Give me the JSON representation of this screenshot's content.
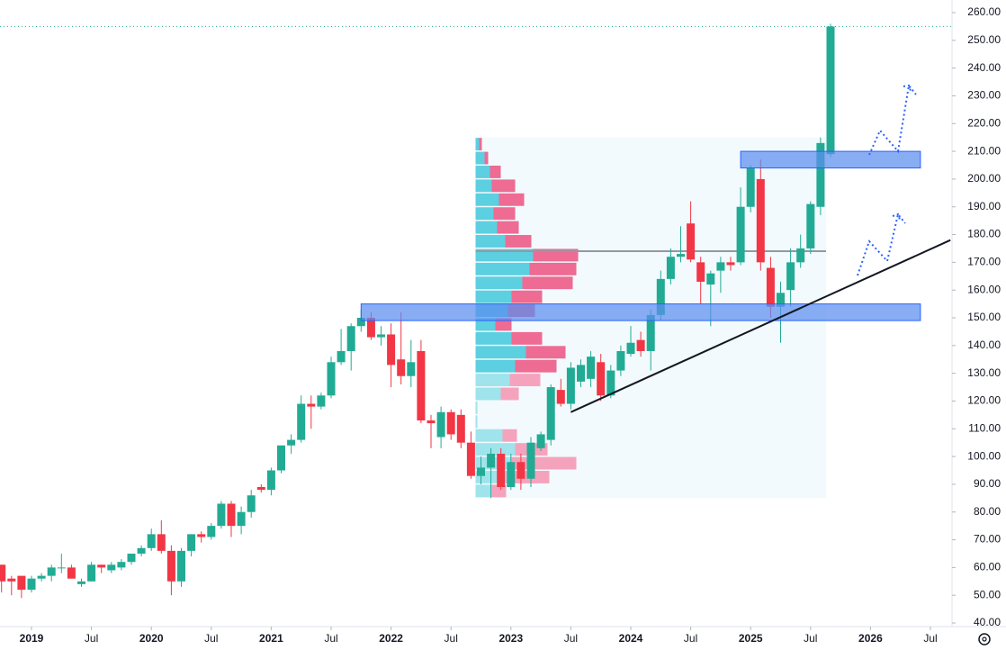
{
  "chart_data": {
    "type": "candlestick",
    "x": [
      "2018-10",
      "2018-11",
      "2018-12",
      "2019-01",
      "2019-02",
      "2019-03",
      "2019-04",
      "2019-05",
      "2019-06",
      "2019-07",
      "2019-08",
      "2019-09",
      "2019-10",
      "2019-11",
      "2019-12",
      "2020-01",
      "2020-02",
      "2020-03",
      "2020-04",
      "2020-05",
      "2020-06",
      "2020-07",
      "2020-08",
      "2020-09",
      "2020-10",
      "2020-11",
      "2020-12",
      "2021-01",
      "2021-02",
      "2021-03",
      "2021-04",
      "2021-05",
      "2021-06",
      "2021-07",
      "2021-08",
      "2021-09",
      "2021-10",
      "2021-11",
      "2021-12",
      "2022-01",
      "2022-02",
      "2022-03",
      "2022-04",
      "2022-05",
      "2022-06",
      "2022-07",
      "2022-08",
      "2022-09",
      "2022-10",
      "2022-11",
      "2022-12",
      "2023-01",
      "2023-02",
      "2023-03",
      "2023-04",
      "2023-05",
      "2023-06",
      "2023-07",
      "2023-08",
      "2023-09",
      "2023-10",
      "2023-11",
      "2023-12",
      "2024-01",
      "2024-02",
      "2024-03",
      "2024-04",
      "2024-05",
      "2024-06",
      "2024-07",
      "2024-08",
      "2024-09",
      "2024-10",
      "2024-11",
      "2024-12",
      "2025-01",
      "2025-02",
      "2025-03",
      "2025-04",
      "2025-05",
      "2025-06",
      "2025-07",
      "2025-08",
      "2025-09"
    ],
    "open": [
      61,
      56,
      57,
      52,
      56,
      57,
      60,
      60,
      54,
      55,
      61,
      59,
      60,
      62,
      65,
      67,
      72,
      66,
      55,
      66,
      72,
      71,
      75,
      83,
      75,
      80,
      89,
      88,
      95,
      104,
      106,
      119,
      118,
      122,
      134,
      138,
      147,
      150,
      143,
      144,
      135,
      129,
      138,
      113,
      107,
      116,
      115,
      105,
      93,
      96,
      101,
      89,
      98,
      92,
      103,
      106,
      124,
      119,
      127,
      128,
      134,
      122,
      131,
      137,
      142,
      138,
      151,
      164,
      172,
      184,
      170,
      162,
      167,
      170,
      170,
      190,
      200,
      168,
      154,
      160,
      170,
      175,
      190,
      209
    ],
    "high": [
      61,
      57,
      57,
      57,
      58,
      61,
      65,
      61,
      56,
      62,
      61,
      62,
      63,
      65,
      68,
      74,
      77,
      68,
      67,
      72,
      73,
      76,
      84,
      84,
      82,
      88,
      90,
      96,
      104,
      108,
      122,
      122,
      123,
      136,
      146,
      148,
      153,
      152,
      147,
      148,
      152,
      142,
      142,
      115,
      118,
      117,
      117,
      109,
      100,
      103,
      103,
      101,
      101,
      107,
      109,
      126,
      128,
      134,
      135,
      138,
      137,
      133,
      140,
      147,
      145,
      153,
      167,
      175,
      183,
      192,
      172,
      167,
      172,
      172,
      197,
      205,
      207,
      172,
      163,
      175,
      180,
      192,
      215,
      256
    ],
    "low": [
      51,
      50,
      49,
      51,
      55,
      55,
      58,
      56,
      53,
      55,
      58,
      58,
      59,
      61,
      64,
      66,
      65,
      50,
      53,
      64,
      69,
      70,
      74,
      71,
      72,
      78,
      87,
      86,
      94,
      101,
      105,
      110,
      117,
      121,
      133,
      131,
      145,
      142,
      140,
      125,
      126,
      125,
      112,
      103,
      103,
      106,
      103,
      92,
      90,
      85,
      88,
      88,
      88,
      89,
      102,
      104,
      118,
      117,
      125,
      125,
      120,
      121,
      129,
      136,
      136,
      131,
      149,
      162,
      170,
      170,
      155,
      147,
      159,
      167,
      169,
      188,
      167,
      150,
      141,
      154,
      168,
      173,
      187,
      208
    ],
    "close": [
      55,
      55,
      52,
      56,
      57,
      60,
      60,
      56,
      55,
      61,
      60,
      61,
      62,
      65,
      67,
      72,
      66,
      55,
      66,
      72,
      71,
      75,
      83,
      75,
      80,
      86,
      88,
      95,
      104,
      106,
      119,
      118,
      122,
      134,
      138,
      147,
      150,
      143,
      144,
      133,
      129,
      134,
      113,
      112,
      116,
      108,
      105,
      93,
      96,
      101,
      89,
      98,
      92,
      105,
      108,
      125,
      119,
      132,
      133,
      136,
      122,
      131,
      138,
      141,
      138,
      151,
      164,
      172,
      173,
      171,
      163,
      166,
      170,
      169,
      190,
      204,
      170,
      154,
      159,
      170,
      175,
      191,
      213,
      255
    ],
    "up_color": "#22ab94",
    "down_color": "#f23645",
    "ylim": [
      40,
      260
    ],
    "yticks": [
      {
        "value": 40,
        "label": "40.00"
      },
      {
        "value": 50,
        "label": "50.00"
      },
      {
        "value": 60,
        "label": "60.00"
      },
      {
        "value": 70,
        "label": "70.00"
      },
      {
        "value": 80,
        "label": "80.00"
      },
      {
        "value": 90,
        "label": "90.00"
      },
      {
        "value": 100,
        "label": "100.00"
      },
      {
        "value": 110,
        "label": "110.00"
      },
      {
        "value": 120,
        "label": "120.00"
      },
      {
        "value": 130,
        "label": "130.00"
      },
      {
        "value": 140,
        "label": "140.00"
      },
      {
        "value": 150,
        "label": "150.00"
      },
      {
        "value": 160,
        "label": "160.00"
      },
      {
        "value": 170,
        "label": "170.00"
      },
      {
        "value": 180,
        "label": "180.00"
      },
      {
        "value": 190,
        "label": "190.00"
      },
      {
        "value": 200,
        "label": "200.00"
      },
      {
        "value": 210,
        "label": "210.00"
      },
      {
        "value": 220,
        "label": "220.00"
      },
      {
        "value": 230,
        "label": "230.00"
      },
      {
        "value": 240,
        "label": "240.00"
      },
      {
        "value": 250,
        "label": "250.00"
      },
      {
        "value": 260,
        "label": "260.00"
      }
    ],
    "xticks": [
      {
        "value": "2019-01",
        "label": "2019"
      },
      {
        "value": "2019-07",
        "label": "Jul"
      },
      {
        "value": "2020-01",
        "label": "2020"
      },
      {
        "value": "2020-07",
        "label": "Jul"
      },
      {
        "value": "2021-01",
        "label": "2021"
      },
      {
        "value": "2021-07",
        "label": "Jul"
      },
      {
        "value": "2022-01",
        "label": "2022"
      },
      {
        "value": "2022-07",
        "label": "Jul"
      },
      {
        "value": "2023-01",
        "label": "2023"
      },
      {
        "value": "2023-07",
        "label": "Jul"
      },
      {
        "value": "2024-01",
        "label": "2024"
      },
      {
        "value": "2024-07",
        "label": "Jul"
      },
      {
        "value": "2025-01",
        "label": "2025"
      },
      {
        "value": "2025-07",
        "label": "Jul"
      },
      {
        "value": "2026-01",
        "label": "2026"
      },
      {
        "value": "2026-07",
        "label": "Jul"
      }
    ],
    "last_price": 255,
    "volume_profile": {
      "start": "2022-10",
      "end": "2025-09",
      "bins": [
        85,
        90,
        95,
        100,
        105,
        110,
        115,
        120,
        125,
        130,
        135,
        140,
        145,
        150,
        155,
        160,
        165,
        170,
        175,
        180,
        185,
        190,
        195,
        200,
        205,
        210,
        215
      ],
      "buy": [
        18,
        34,
        40,
        44,
        30,
        2,
        2,
        28,
        38,
        44,
        56,
        40,
        22,
        36,
        40,
        52,
        60,
        64,
        33,
        24,
        20,
        26,
        18,
        16,
        10,
        4
      ],
      "sell": [
        16,
        48,
        72,
        36,
        16,
        0,
        0,
        20,
        34,
        46,
        44,
        34,
        18,
        30,
        34,
        56,
        52,
        50,
        29,
        24,
        24,
        28,
        26,
        12,
        4,
        3
      ],
      "poc": 174
    },
    "zones": [
      {
        "low": 149,
        "high": 155,
        "start": "2021-10",
        "end": "2026-06"
      },
      {
        "low": 204,
        "high": 210,
        "start": "2024-12",
        "end": "2026-06"
      }
    ],
    "trendline": {
      "x": [
        "2023-07",
        "2026-09"
      ],
      "y": [
        116,
        178
      ]
    }
  }
}
